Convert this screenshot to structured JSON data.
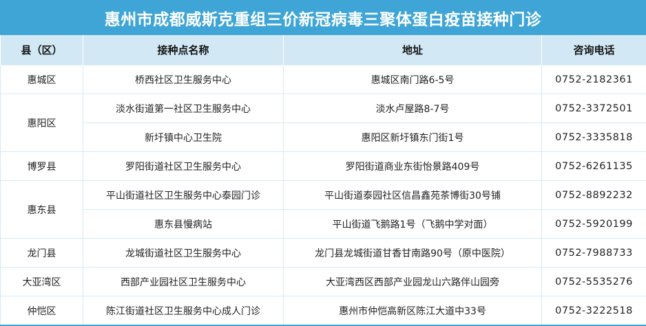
{
  "title": "惠州市成都威斯克重组三价新冠病毒三聚体蛋白疫苗接种门诊",
  "columns": [
    "县（区）",
    "接种点名称",
    "地址",
    "咨询电话"
  ],
  "rows": [
    {
      "district": "惠城区",
      "name": "桥西社区卫生服务中心",
      "address": "惠城区南门路6-5号",
      "phone": "0752-2182361"
    },
    {
      "district": "惠阳区",
      "name": "淡水街道第一社区卫生服务中心",
      "address": "淡水卢屋路8-7号",
      "phone": "0752-3372501"
    },
    {
      "district": "惠阳区",
      "name": "新圩镇中心卫生院",
      "address": "惠阳区新圩镇东门街1号",
      "phone": "0752-3335818"
    },
    {
      "district": "博罗县",
      "name": "罗阳街道社区卫生服务中心",
      "address": "罗阳街道商业东街怡景路409号",
      "phone": "0752-6261135"
    },
    {
      "district": "惠东县",
      "name": "平山街道社区卫生服务中心泰园门诊",
      "address": "平山街道泰园社区信昌鑫苑茶博街30号铺",
      "phone": "0752-8892232"
    },
    {
      "district": "惠东县",
      "name": "惠东县慢病站",
      "address": "平山街道飞鹅路1号（飞鹅中学对面）",
      "phone": "0752-5920199"
    },
    {
      "district": "龙门县",
      "name": "龙城街道社区卫生服务中心",
      "address": "龙门县龙城街道甘香甘南路90号（原中医院）",
      "phone": "0752-7988733"
    },
    {
      "district": "大亚湾区",
      "name": "西部产业园社区卫生服务中心",
      "address": "大亚湾西区西部产业园龙山六路伴山园旁",
      "phone": "0752-5535276"
    },
    {
      "district": "仲恺区",
      "name": "陈江街道社区卫生服务中心成人门诊",
      "address": "惠州市仲恺高新区陈江大道中33号",
      "phone": "0752-3222518"
    }
  ]
}
